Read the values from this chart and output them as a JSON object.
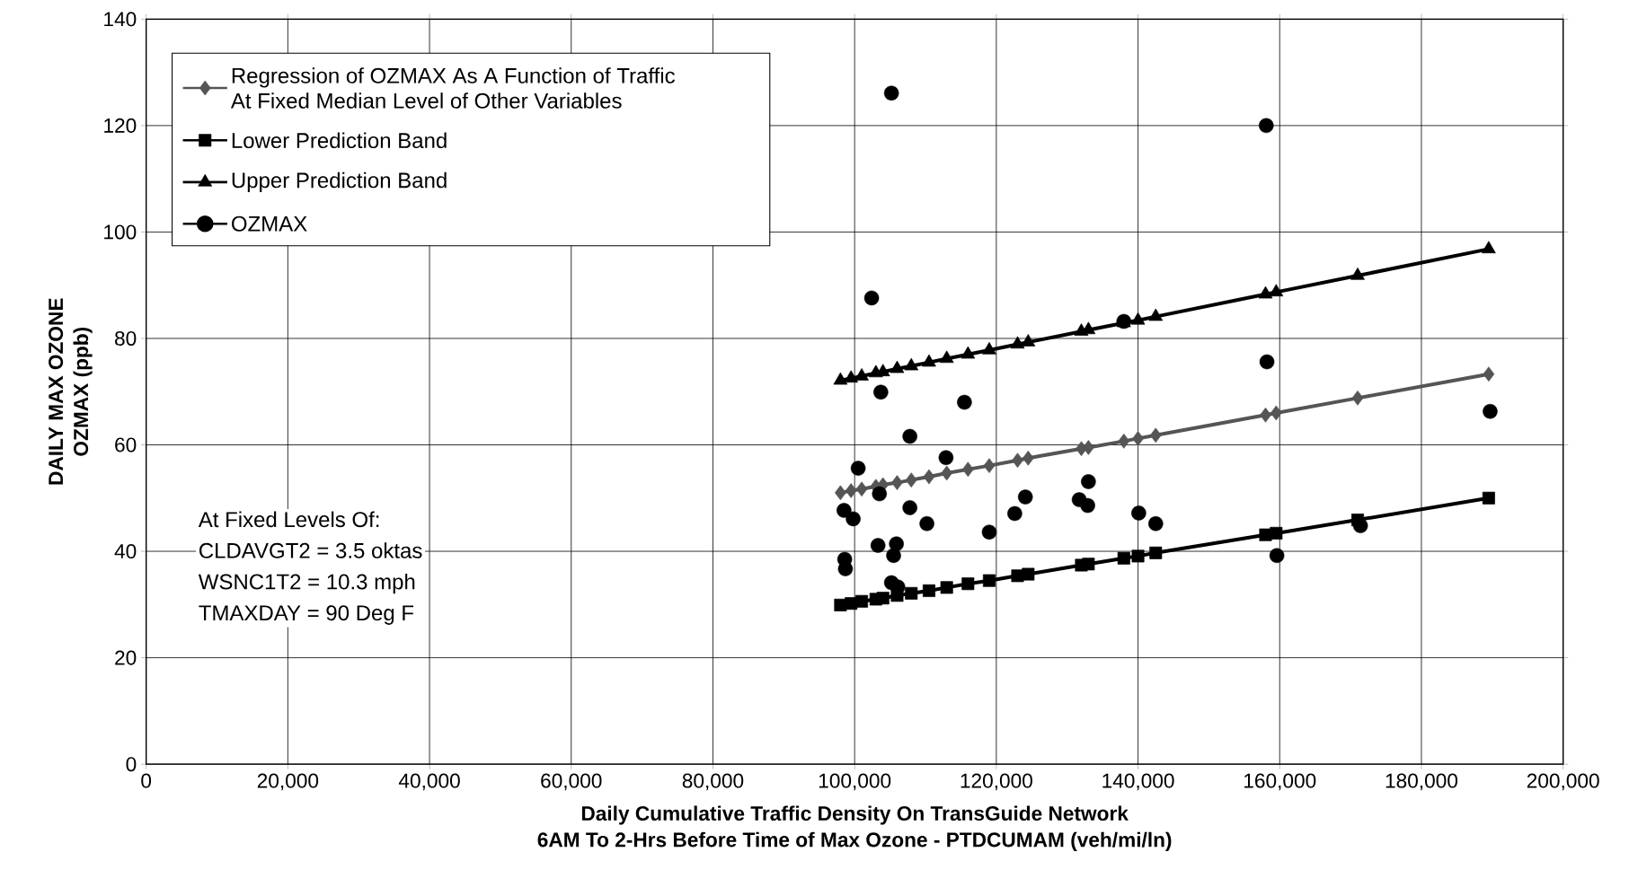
{
  "chart_data": {
    "type": "line",
    "xlabel": "Daily Cumulative Traffic Density On TransGuide Network\n6AM To 2-Hrs Before Time of Max Ozone - PTDCUMAM (veh/mi/ln)",
    "ylabel": "DAILY MAX OZONE\nOZMAX (ppb)",
    "xlim": [
      0,
      200000
    ],
    "ylim": [
      0,
      140
    ],
    "xticks": [
      0,
      {
        "value": 20000,
        "label": "20,000"
      },
      {
        "value": 40000,
        "label": "40,000"
      },
      {
        "value": 60000,
        "label": "60,000"
      },
      {
        "value": 80000,
        "label": "80,000"
      },
      {
        "value": 100000,
        "label": "100,000"
      },
      {
        "value": 120000,
        "label": "120,000"
      },
      {
        "value": 140000,
        "label": "140,000"
      },
      {
        "value": 160000,
        "label": "160,000"
      },
      {
        "value": 180000,
        "label": "180,000"
      },
      {
        "value": 200000,
        "label": "200,000"
      }
    ],
    "yticks": [
      0,
      20,
      40,
      60,
      80,
      100,
      120,
      140
    ],
    "grid": true,
    "legend": "top left",
    "annotations": [
      "At Fixed Levels Of:",
      "CLDAVGT2 = 3.5 oktas",
      "WSNC1T2 = 10.3 mph",
      "TMAXDAY = 90 Deg F"
    ],
    "x": [
      98000,
      99500,
      101000,
      103000,
      104000,
      106000,
      108000,
      110500,
      113000,
      116000,
      119000,
      123000,
      124500,
      132000,
      133000,
      138000,
      140000,
      142500,
      158000,
      159500,
      171000,
      189500
    ],
    "series": [
      {
        "name": "Regression of OZMAX As A Function of Traffic\nAt Fixed Median Level of Other Variables",
        "type": "line",
        "marker": "diamond",
        "color": "#555555",
        "values": [
          51.0,
          51.4,
          51.7,
          52.2,
          52.5,
          52.9,
          53.4,
          54.0,
          54.7,
          55.4,
          56.1,
          57.1,
          57.5,
          59.3,
          59.5,
          60.7,
          61.2,
          61.8,
          65.6,
          66.0,
          68.8,
          73.3
        ]
      },
      {
        "name": "Lower Prediction Band",
        "type": "line",
        "marker": "square",
        "color": "#000000",
        "values": [
          29.9,
          30.2,
          30.6,
          31.0,
          31.2,
          31.7,
          32.1,
          32.6,
          33.2,
          33.9,
          34.5,
          35.4,
          35.7,
          37.4,
          37.6,
          38.7,
          39.1,
          39.7,
          43.1,
          43.4,
          45.9,
          50.0
        ]
      },
      {
        "name": "Upper Prediction Band",
        "type": "line",
        "marker": "triangle",
        "color": "#000000",
        "values": [
          72.1,
          72.5,
          72.9,
          73.5,
          73.7,
          74.3,
          74.8,
          75.5,
          76.2,
          77.0,
          77.8,
          78.9,
          79.3,
          81.3,
          81.6,
          82.9,
          83.4,
          84.1,
          88.3,
          88.7,
          91.8,
          96.8
        ]
      },
      {
        "name": "OZMAX",
        "type": "scatter",
        "marker": "circle",
        "color": "#000000",
        "x": [
          105200,
          102400,
          138000,
          158100,
          158200,
          189700,
          171400,
          159600,
          103700,
          115500,
          107800,
          112900,
          100500,
          103500,
          133000,
          124100,
          131700,
          132900,
          98500,
          107800,
          99800,
          140100,
          122600,
          110200,
          142500,
          119000,
          103300,
          105900,
          105500,
          98600,
          98700,
          105200,
          106100
        ],
        "values": [
          126.1,
          87.6,
          83.2,
          120.0,
          75.6,
          66.3,
          44.8,
          39.2,
          69.9,
          68.0,
          61.6,
          57.6,
          55.6,
          50.8,
          53.1,
          50.2,
          49.7,
          48.6,
          47.7,
          48.2,
          46.1,
          47.2,
          47.1,
          45.2,
          45.2,
          43.6,
          41.1,
          41.4,
          39.2,
          38.5,
          36.7,
          34.1,
          33.3
        ]
      }
    ]
  }
}
